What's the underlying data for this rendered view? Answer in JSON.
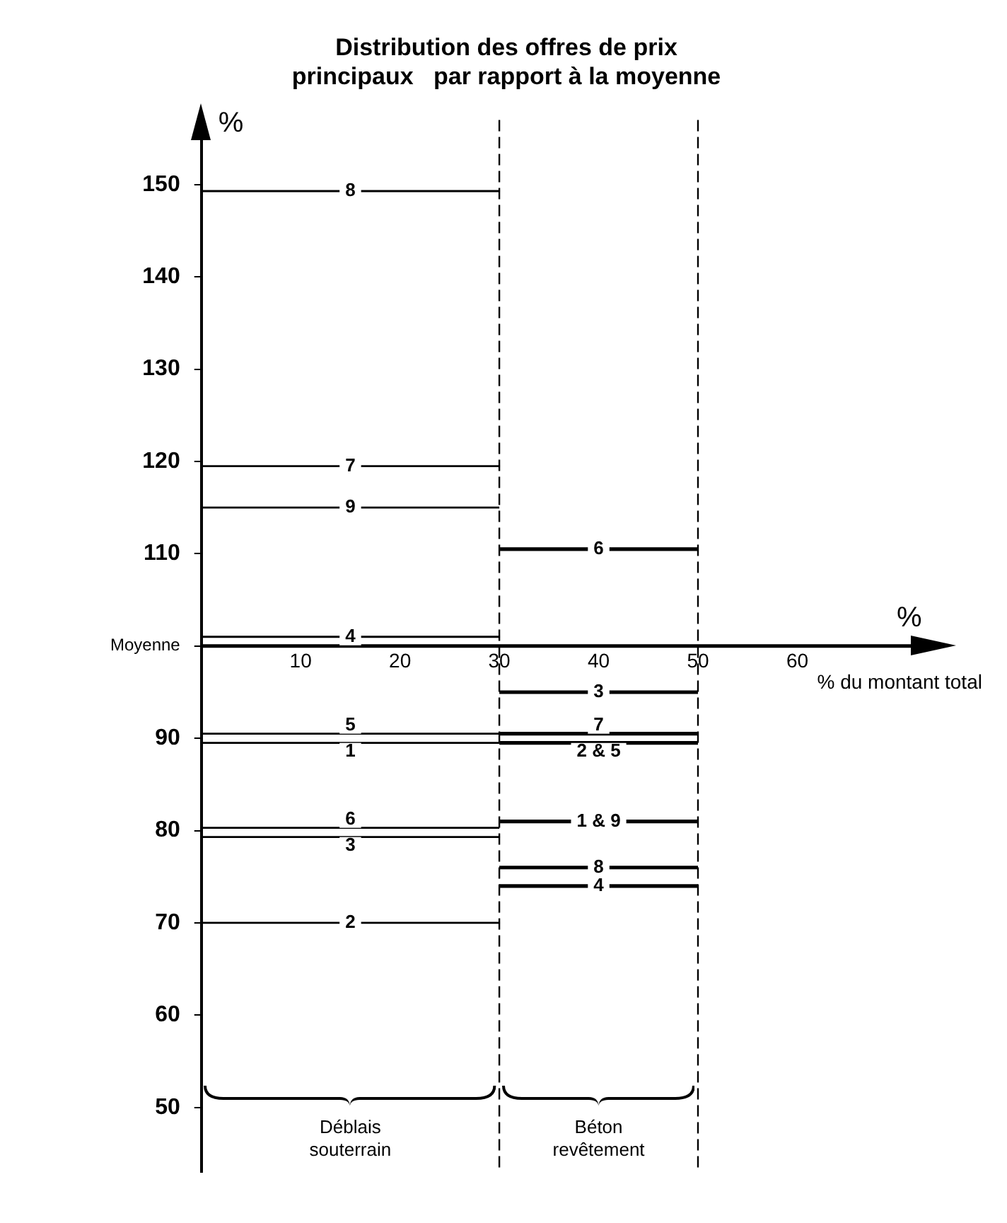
{
  "chart_data": {
    "type": "line",
    "title": "Distribution des offres de prix\nprincipaux   par rapport à la moyenne",
    "xlabel": "% du montant total",
    "ylabel": "%",
    "annotations": [
      "%",
      "Déblais\nsouterrain",
      "Béton\nrevêtement"
    ],
    "xlim": [
      0,
      72
    ],
    "xticks": [
      10,
      20,
      30,
      40,
      50,
      60
    ],
    "ylim": [
      43,
      157
    ],
    "yticks": [
      50,
      60,
      70,
      80,
      90,
      {
        "value": 100,
        "label": "Moyenne"
      },
      110,
      120,
      130,
      140,
      150
    ],
    "grid": false,
    "legend": false,
    "marker": "none",
    "line_style": "solid",
    "ref_lines": [
      {
        "axis": "y",
        "value": 100,
        "line_style": "solid",
        "color": "#000000"
      },
      {
        "axis": "x",
        "value": 30,
        "line_style": "dashed",
        "color": "#000000"
      },
      {
        "axis": "x",
        "value": 50,
        "line_style": "dashed",
        "color": "#000000"
      }
    ],
    "series": [
      {
        "name": "8",
        "color": "#000000",
        "x": [
          0,
          30
        ],
        "values": [
          149.3,
          149.3
        ]
      },
      {
        "name": "7",
        "color": "#000000",
        "x": [
          0,
          30
        ],
        "values": [
          119.5,
          119.5
        ]
      },
      {
        "name": "9",
        "color": "#000000",
        "x": [
          0,
          30
        ],
        "values": [
          115,
          115
        ]
      },
      {
        "name": "4",
        "color": "#000000",
        "x": [
          0,
          30
        ],
        "values": [
          101,
          101
        ]
      },
      {
        "name": "5",
        "color": "#000000",
        "x": [
          0,
          30
        ],
        "values": [
          90.5,
          90.5
        ]
      },
      {
        "name": "1",
        "color": "#000000",
        "x": [
          0,
          30
        ],
        "values": [
          89.5,
          89.5
        ]
      },
      {
        "name": "6",
        "color": "#000000",
        "x": [
          0,
          30
        ],
        "values": [
          80.3,
          80.3
        ]
      },
      {
        "name": "3",
        "color": "#000000",
        "x": [
          0,
          30
        ],
        "values": [
          79.3,
          79.3
        ]
      },
      {
        "name": "2",
        "color": "#000000",
        "x": [
          0,
          30
        ],
        "values": [
          70,
          70
        ]
      },
      {
        "name": "6",
        "color": "#000000",
        "x": [
          30,
          50
        ],
        "values": [
          110.5,
          110.5
        ]
      },
      {
        "name": "3",
        "color": "#000000",
        "x": [
          30,
          50
        ],
        "values": [
          95,
          95
        ]
      },
      {
        "name": "7",
        "color": "#000000",
        "x": [
          30,
          50
        ],
        "values": [
          90.5,
          90.5
        ]
      },
      {
        "name": "2 & 5",
        "color": "#000000",
        "x": [
          30,
          50
        ],
        "values": [
          89.5,
          89.5
        ]
      },
      {
        "name": "1 & 9",
        "color": "#000000",
        "x": [
          30,
          50
        ],
        "values": [
          81,
          81
        ]
      },
      {
        "name": "8",
        "color": "#000000",
        "x": [
          30,
          50
        ],
        "values": [
          76,
          76
        ]
      },
      {
        "name": "4",
        "color": "#000000",
        "x": [
          30,
          50
        ],
        "values": [
          74,
          74
        ]
      }
    ]
  }
}
